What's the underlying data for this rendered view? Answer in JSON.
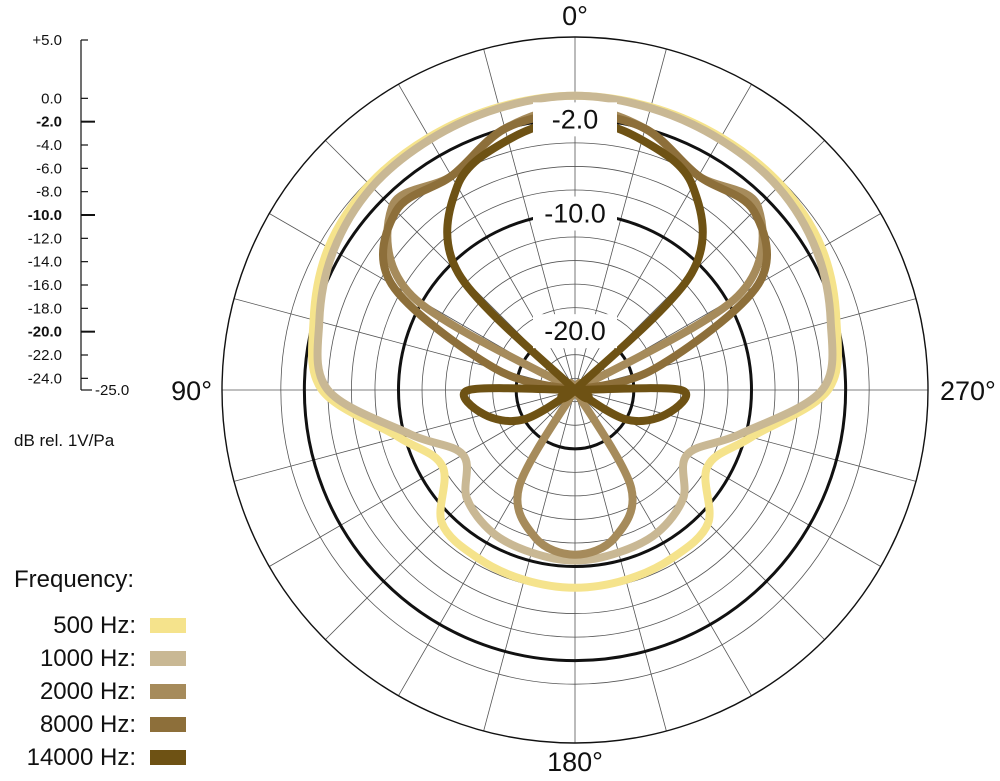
{
  "chart_data": {
    "type": "polar",
    "angle_labels": [
      {
        "angle": 0,
        "text": "0°"
      },
      {
        "angle": 90,
        "text": "90°"
      },
      {
        "angle": 180,
        "text": "180°"
      },
      {
        "angle": 270,
        "text": "270°"
      }
    ],
    "rlim": [
      -25,
      5
    ],
    "angle_direction": "counterclockwise",
    "zero_angle_position": "top",
    "angular_grid_step_deg": 15,
    "radial_grid_levels": [
      0,
      -2,
      -4,
      -6,
      -8,
      -10,
      -12,
      -14,
      -16,
      -18,
      -20,
      -22,
      -24
    ],
    "emphasized_levels": [
      -2,
      -10,
      -20
    ],
    "ring_labels": [
      {
        "value": -2,
        "text": "-2.0"
      },
      {
        "value": -10,
        "text": "-10.0"
      },
      {
        "value": -20,
        "text": "-20.0"
      }
    ],
    "scale_ticks": [
      {
        "value": 5,
        "text": "+5.0",
        "bold": false
      },
      {
        "value": 0,
        "text": "0.0",
        "bold": false
      },
      {
        "value": -2,
        "text": "-2.0",
        "bold": true
      },
      {
        "value": -4,
        "text": "-4.0",
        "bold": false
      },
      {
        "value": -6,
        "text": "-6.0",
        "bold": false
      },
      {
        "value": -8,
        "text": "-8.0",
        "bold": false
      },
      {
        "value": -10,
        "text": "-10.0",
        "bold": true
      },
      {
        "value": -12,
        "text": "-12.0",
        "bold": false
      },
      {
        "value": -14,
        "text": "-14.0",
        "bold": false
      },
      {
        "value": -16,
        "text": "-16.0",
        "bold": false
      },
      {
        "value": -18,
        "text": "-18.0",
        "bold": false
      },
      {
        "value": -20,
        "text": "-20.0",
        "bold": true
      },
      {
        "value": -22,
        "text": "-22.0",
        "bold": false
      },
      {
        "value": -24,
        "text": "-24.0",
        "bold": false
      },
      {
        "value": -25,
        "text": "-25.0",
        "bold": false
      }
    ],
    "unit_label": "dB rel. 1V/Pa",
    "legend_title": "Frequency:",
    "legend_position": "bottom-left",
    "series": [
      {
        "name": "500 Hz:",
        "color": "#F5E38C",
        "angles": [
          0,
          15,
          30,
          45,
          60,
          75,
          90,
          105,
          120,
          135,
          150,
          165,
          180,
          195,
          210,
          225,
          240,
          255,
          270,
          285,
          300,
          315,
          330,
          345
        ],
        "values": [
          0.0,
          -0.1,
          -0.2,
          -0.3,
          -0.8,
          -2.0,
          -3.5,
          -9.5,
          -12.0,
          -9.0,
          -8.5,
          -8.3,
          -8.2,
          -8.3,
          -8.5,
          -9.0,
          -12.0,
          -9.5,
          -3.5,
          -2.0,
          -0.8,
          -0.3,
          -0.2,
          -0.1
        ]
      },
      {
        "name": "1000 Hz:",
        "color": "#C9B894",
        "angles": [
          0,
          15,
          30,
          45,
          60,
          75,
          90,
          105,
          120,
          135,
          150,
          165,
          180,
          195,
          210,
          225,
          240,
          255,
          270,
          285,
          300,
          315,
          330,
          345
        ],
        "values": [
          0.0,
          -0.2,
          -0.4,
          -0.6,
          -1.3,
          -2.5,
          -4.0,
          -10.5,
          -14.0,
          -12.0,
          -11.0,
          -10.7,
          -10.5,
          -10.7,
          -11.0,
          -12.0,
          -14.0,
          -10.5,
          -4.0,
          -2.5,
          -1.3,
          -0.6,
          -0.4,
          -0.2
        ]
      },
      {
        "name": "2000 Hz:",
        "color": "#A68B5B",
        "angles": [
          0,
          15,
          30,
          45,
          60,
          75,
          90,
          105,
          120,
          135,
          150,
          165,
          180,
          195,
          210,
          225,
          240,
          255,
          270,
          285,
          300,
          315,
          330,
          345
        ],
        "values": [
          -1.0,
          -2.0,
          -4.0,
          -3.0,
          -9.0,
          -25.0,
          -25.0,
          -25.0,
          -25.0,
          -25.0,
          -15.5,
          -12.0,
          -11.0,
          -12.0,
          -15.5,
          -25.0,
          -25.0,
          -25.0,
          -25.0,
          -25.0,
          -9.0,
          -3.0,
          -4.0,
          -2.0
        ]
      },
      {
        "name": "8000 Hz:",
        "color": "#8D6F3A",
        "angles": [
          0,
          15,
          30,
          45,
          60,
          75,
          90,
          105,
          120,
          135,
          150,
          165,
          180,
          195,
          210,
          225,
          240,
          255,
          270,
          285,
          300,
          315,
          330,
          345
        ],
        "values": [
          -1.5,
          -2.0,
          -4.0,
          -3.5,
          -7.0,
          -18.0,
          -25.0,
          -25.0,
          -25.0,
          -25.0,
          -25.0,
          -25.0,
          -25.0,
          -25.0,
          -25.0,
          -25.0,
          -25.0,
          -25.0,
          -25.0,
          -18.0,
          -7.0,
          -3.5,
          -4.0,
          -2.0
        ]
      },
      {
        "name": "14000 Hz:",
        "color": "#6E5214",
        "angles": [
          0,
          15,
          30,
          45,
          60,
          75,
          90,
          105,
          120,
          135,
          150,
          165,
          180,
          195,
          210,
          225,
          240,
          255,
          270,
          285,
          300,
          315,
          330,
          345
        ],
        "values": [
          -2.0,
          -3.0,
          -5.0,
          -11.0,
          -25.0,
          -25.0,
          -16.0,
          -17.0,
          -20.0,
          -25.0,
          -25.0,
          -25.0,
          -25.0,
          -25.0,
          -25.0,
          -25.0,
          -20.0,
          -17.0,
          -16.0,
          -25.0,
          -25.0,
          -11.0,
          -5.0,
          -3.0
        ]
      }
    ]
  }
}
